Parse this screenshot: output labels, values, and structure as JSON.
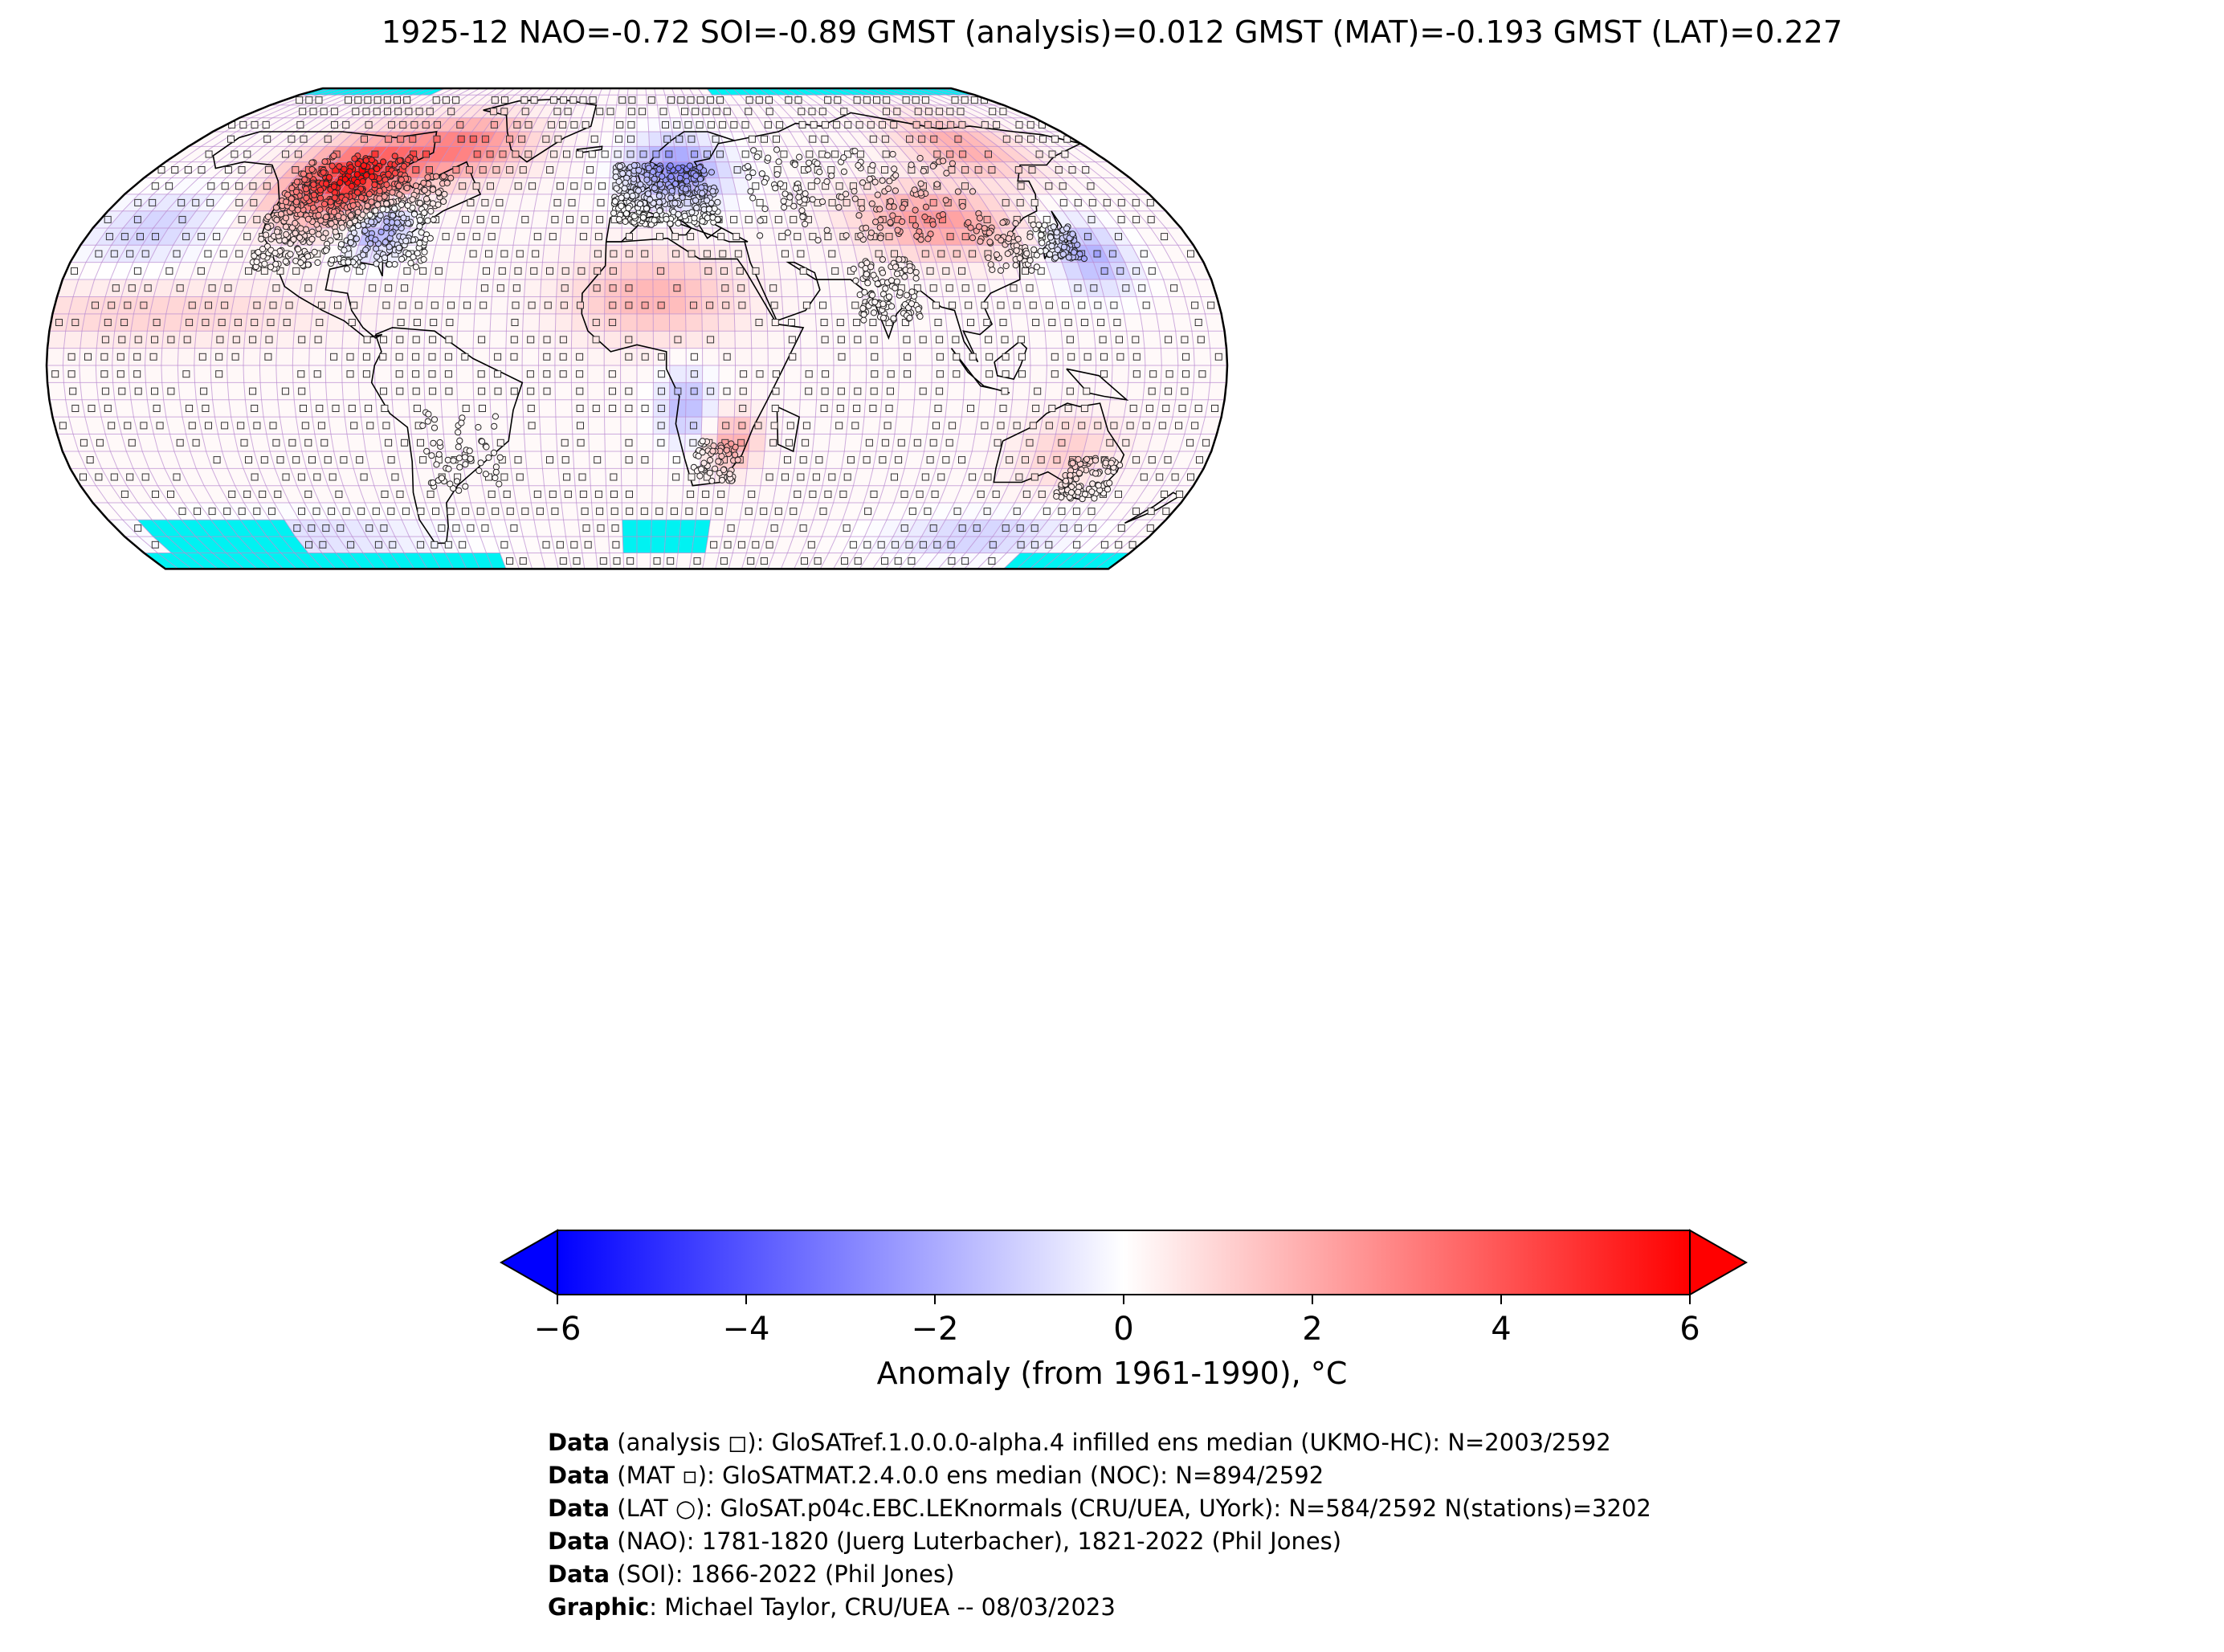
{
  "title": "1925-12 NAO=-0.72 SOI=-0.89 GMST (analysis)=0.012 GMST (MAT)=-0.193 GMST (LAT)=0.227",
  "map": {
    "projection": "Robinson",
    "grid_resolution_deg": 5,
    "colors": {
      "no_data": "#00f2f2",
      "land_mask": "#7f7f7f",
      "gridline": "#b98ad0",
      "coast": "#000000",
      "cold": "#0000ff",
      "neutral": "#ffffff",
      "warm": "#ff0000"
    },
    "icons": {
      "analysis_marker": "open-square",
      "mat_marker": "small-square",
      "lat_marker": "open-circle"
    }
  },
  "colorbar": {
    "min": -6,
    "max": 6,
    "ticks": [
      {
        "value": -6,
        "label": "−6"
      },
      {
        "value": -4,
        "label": "−4"
      },
      {
        "value": -2,
        "label": "−2"
      },
      {
        "value": 0,
        "label": "0"
      },
      {
        "value": 2,
        "label": "2"
      },
      {
        "value": 4,
        "label": "4"
      },
      {
        "value": 6,
        "label": "6"
      }
    ],
    "label": "Anomaly (from 1961-1990), °C",
    "extend": "both"
  },
  "credits": [
    {
      "key": "Data",
      "text": " (analysis ◻): GloSATref.1.0.0.0-alpha.4 infilled ens median (UKMO-HC): N=2003/2592"
    },
    {
      "key": "Data",
      "text": " (MAT ▫): GloSATMAT.2.4.0.0 ens median (NOC): N=894/2592"
    },
    {
      "key": "Data",
      "text": " (LAT ○): GloSAT.p04c.EBC.LEKnormals (CRU/UEA, UYork): N=584/2592 N(stations)=3202"
    },
    {
      "key": "Data",
      "text": " (NAO): 1781-1820 (Juerg Luterbacher), 1821-2022 (Phil Jones)"
    },
    {
      "key": "Data",
      "text": " (SOI): 1866-2022 (Phil Jones)"
    },
    {
      "key": "Graphic",
      "text": ": Michael Taylor, CRU/UEA -- 08/03/2023"
    }
  ]
}
